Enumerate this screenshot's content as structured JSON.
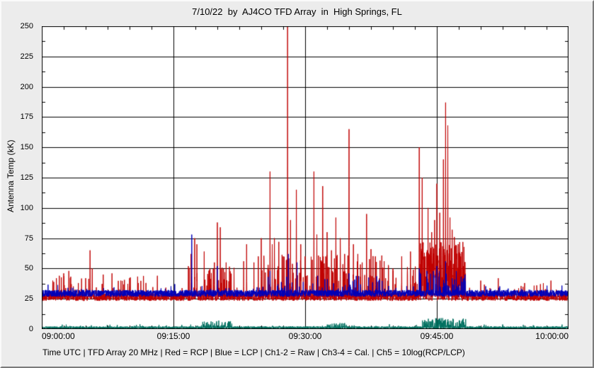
{
  "header": {
    "title": "7/10/22  by  AJ4CO TFD Array  in  High Springs, FL"
  },
  "footer": {
    "caption": "Time UTC | TFD Array 20 MHz | Red = RCP | Blue = LCP | Ch1-2 = Raw | Ch3-4 = Cal. | Ch5 = 10log(RCP/LCP)"
  },
  "chart_data": {
    "type": "line",
    "title": "7/10/22 by AJ4CO TFD Array in High Springs, FL",
    "ylabel": "Antenna Temp (kK)",
    "ylim": [
      0,
      250
    ],
    "yticks": [
      0,
      25,
      50,
      75,
      100,
      125,
      150,
      175,
      200,
      225,
      250
    ],
    "x_span_seconds": 3600,
    "xticks": [
      {
        "label": "09:00:00",
        "t": 0
      },
      {
        "label": "09:15:00",
        "t": 900
      },
      {
        "label": "09:30:00",
        "t": 1800
      },
      {
        "label": "09:45:00",
        "t": 2700
      },
      {
        "label": "10:00:00",
        "t": 3600
      }
    ],
    "grid": true,
    "gridline_color": "#000000",
    "plot_background": "#ffffff",
    "outer_background": "#ececec",
    "colors": {
      "rcp": "#c00000",
      "lcp": "#0000bb",
      "ratio": "#007060"
    },
    "series": [
      {
        "name": "Ch1-2 RCP (Raw/Cal)",
        "color_key": "rcp",
        "baseline": 26.5,
        "noise": 3.2,
        "spike_format": "[seconds_after_09:00:00, peak_kK]",
        "spikes": [
          [
            75,
            40
          ],
          [
            120,
            44
          ],
          [
            150,
            46
          ],
          [
            185,
            48
          ],
          [
            250,
            38
          ],
          [
            300,
            42
          ],
          [
            330,
            65
          ],
          [
            345,
            50
          ],
          [
            420,
            45
          ],
          [
            480,
            46
          ],
          [
            540,
            40
          ],
          [
            600,
            42
          ],
          [
            660,
            38
          ],
          [
            790,
            44
          ],
          [
            1020,
            62
          ],
          [
            1045,
            75
          ],
          [
            1060,
            70
          ],
          [
            1110,
            64
          ],
          [
            1150,
            50
          ],
          [
            1180,
            55
          ],
          [
            1200,
            88
          ],
          [
            1220,
            84
          ],
          [
            1260,
            55
          ],
          [
            1380,
            56
          ],
          [
            1400,
            70
          ],
          [
            1450,
            55
          ],
          [
            1480,
            60
          ],
          [
            1500,
            75
          ],
          [
            1560,
            130
          ],
          [
            1575,
            70
          ],
          [
            1590,
            75
          ],
          [
            1620,
            72
          ],
          [
            1650,
            60
          ],
          [
            1680,
            255
          ],
          [
            1700,
            90
          ],
          [
            1740,
            115
          ],
          [
            1770,
            70
          ],
          [
            1800,
            60
          ],
          [
            1860,
            130
          ],
          [
            1880,
            78
          ],
          [
            1920,
            118
          ],
          [
            1950,
            80
          ],
          [
            1980,
            65
          ],
          [
            2010,
            92
          ],
          [
            2040,
            75
          ],
          [
            2070,
            62
          ],
          [
            2100,
            165
          ],
          [
            2130,
            70
          ],
          [
            2160,
            62
          ],
          [
            2190,
            55
          ],
          [
            2220,
            95
          ],
          [
            2250,
            66
          ],
          [
            2280,
            60
          ],
          [
            2340,
            56
          ],
          [
            2400,
            50
          ],
          [
            2460,
            60
          ],
          [
            2520,
            64
          ],
          [
            2580,
            150
          ],
          [
            2600,
            125
          ],
          [
            2640,
            100
          ],
          [
            2665,
            80
          ],
          [
            2685,
            90
          ],
          [
            2700,
            120
          ],
          [
            2720,
            96
          ],
          [
            2745,
            140
          ],
          [
            2760,
            187
          ],
          [
            2775,
            168
          ],
          [
            2790,
            92
          ],
          [
            2805,
            82
          ],
          [
            2820,
            76
          ],
          [
            2850,
            62
          ],
          [
            2880,
            50
          ],
          [
            3000,
            40
          ],
          [
            3120,
            42
          ],
          [
            3300,
            38
          ],
          [
            3480,
            40
          ]
        ],
        "clusters": [
          {
            "start": 60,
            "end": 720,
            "rate": 0.035,
            "min": 32,
            "max": 44
          },
          {
            "start": 1000,
            "end": 1320,
            "rate": 0.1,
            "min": 33,
            "max": 55
          },
          {
            "start": 1500,
            "end": 2400,
            "rate": 0.14,
            "min": 33,
            "max": 62
          },
          {
            "start": 2400,
            "end": 2580,
            "rate": 0.1,
            "min": 33,
            "max": 55
          },
          {
            "start": 2580,
            "end": 2900,
            "rate": 0.55,
            "min": 34,
            "max": 72
          },
          {
            "start": 2900,
            "end": 3600,
            "rate": 0.02,
            "min": 30,
            "max": 38
          }
        ]
      },
      {
        "name": "Ch1-2 LCP (Raw/Cal)",
        "color_key": "lcp",
        "baseline": 29.5,
        "noise": 2.8,
        "spike_format": "[seconds_after_09:00:00, peak_kK]",
        "spikes": [
          [
            1025,
            78
          ],
          [
            1200,
            52
          ],
          [
            1560,
            48
          ],
          [
            1685,
            62
          ],
          [
            1745,
            55
          ],
          [
            2100,
            46
          ],
          [
            2580,
            50
          ],
          [
            2700,
            52
          ],
          [
            2760,
            56
          ]
        ],
        "clusters": [
          {
            "start": 1500,
            "end": 2400,
            "rate": 0.05,
            "min": 32,
            "max": 44
          },
          {
            "start": 2580,
            "end": 2900,
            "rate": 0.15,
            "min": 32,
            "max": 48
          }
        ]
      },
      {
        "name": "Ch5 10log(RCP/LCP)",
        "color_key": "ratio",
        "baseline": 1.2,
        "noise": 1.0,
        "spike_format": "[seconds_after_09:00:00, peak_kK]",
        "spikes": [
          [
            1210,
            7
          ],
          [
            2740,
            9
          ],
          [
            2760,
            8
          ]
        ],
        "clusters": [
          {
            "start": 1100,
            "end": 1300,
            "rate": 0.25,
            "min": 2,
            "max": 7
          },
          {
            "start": 1950,
            "end": 2100,
            "rate": 0.15,
            "min": 2,
            "max": 5
          },
          {
            "start": 2600,
            "end": 2900,
            "rate": 0.3,
            "min": 2,
            "max": 9
          }
        ]
      }
    ]
  }
}
